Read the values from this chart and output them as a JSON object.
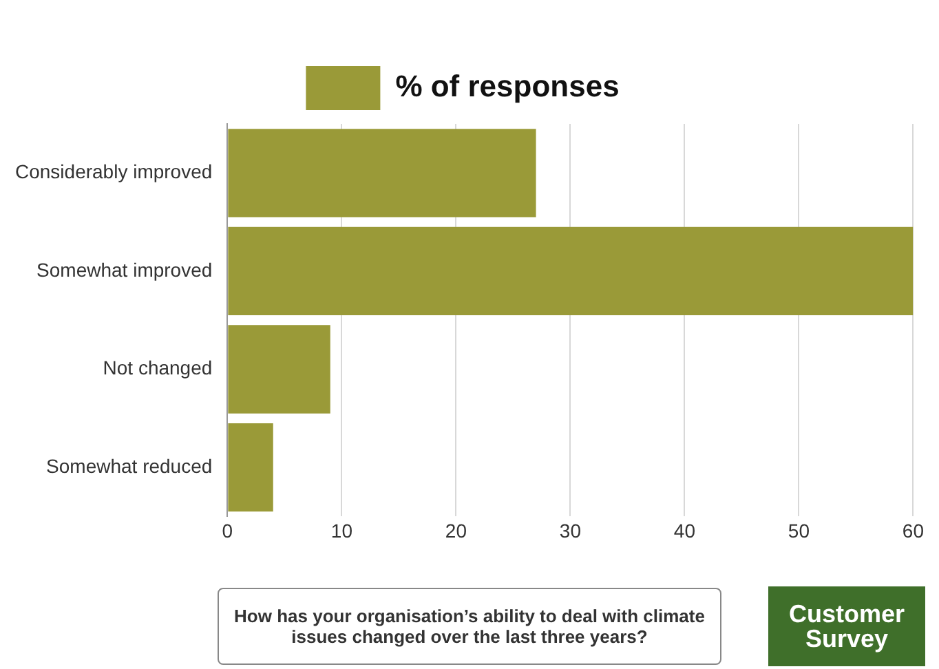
{
  "chart_data": {
    "type": "bar",
    "orientation": "horizontal",
    "categories": [
      "Considerably improved",
      "Somewhat improved",
      "Not changed",
      "Somewhat reduced"
    ],
    "series": [
      {
        "name": "% of responses",
        "color": "#9a9a38",
        "values": [
          27,
          60,
          9,
          4
        ]
      }
    ],
    "xlim": [
      0,
      60
    ],
    "xticks": [
      0,
      10,
      20,
      30,
      40,
      50,
      60
    ],
    "grid": "x",
    "legend": "top",
    "annotations": [
      "How has your organisation’s ability to deal with climate issues changed over the last three years?",
      "Customer Survey"
    ]
  }
}
